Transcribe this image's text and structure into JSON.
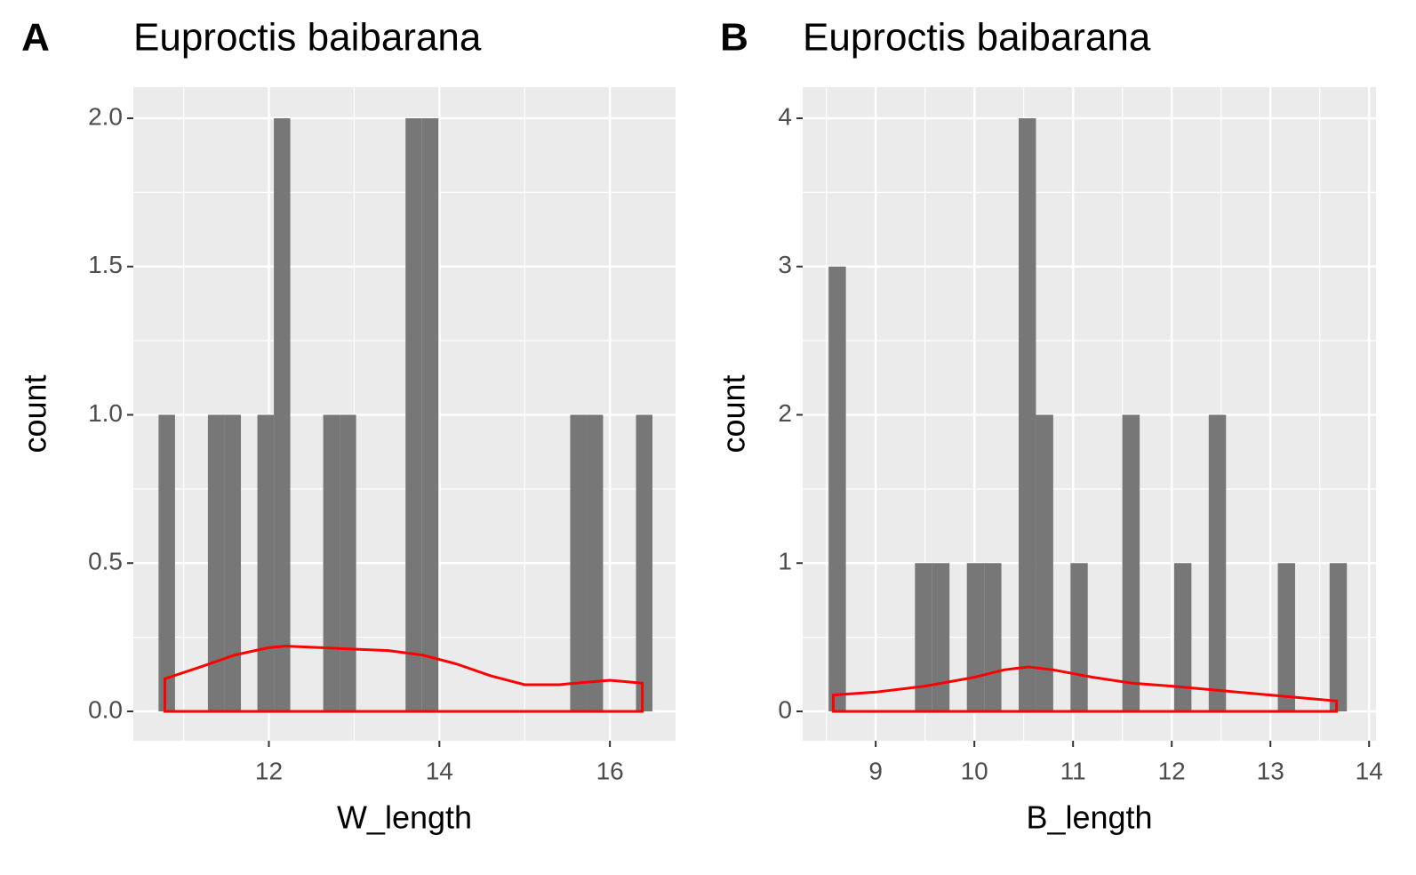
{
  "chart_data": [
    {
      "type": "histogram",
      "label": "A",
      "title": "Euproctis baibarana",
      "xlabel": "W_length",
      "ylabel": "count",
      "bins": [
        10.706,
        10.899,
        11.092,
        11.285,
        11.478,
        11.672,
        11.865,
        12.058,
        12.251,
        12.444,
        12.637,
        12.83,
        13.023,
        13.216,
        13.409,
        13.603,
        13.796,
        13.989,
        14.182,
        14.375,
        14.568,
        14.761,
        14.954,
        15.147,
        15.34,
        15.534,
        15.727,
        15.92,
        16.113,
        16.306,
        16.499
      ],
      "counts": [
        1,
        0,
        0,
        1,
        1,
        0,
        1,
        2,
        0,
        0,
        1,
        1,
        0,
        0,
        0,
        2,
        2,
        0,
        0,
        0,
        0,
        0,
        0,
        0,
        0,
        1,
        1,
        0,
        0,
        1
      ],
      "color": "#777777",
      "density": {
        "color": "#ff0000",
        "x": [
          10.78,
          11.2,
          11.6,
          12.0,
          12.2,
          12.6,
          13.0,
          13.4,
          13.8,
          14.2,
          14.6,
          15.0,
          15.4,
          15.8,
          16.0,
          16.38
        ],
        "y": [
          0.11,
          0.15,
          0.19,
          0.215,
          0.22,
          0.215,
          0.21,
          0.205,
          0.19,
          0.16,
          0.12,
          0.09,
          0.09,
          0.1,
          0.105,
          0.095
        ]
      },
      "xlim": [
        10.41,
        16.77
      ],
      "ylim": [
        -0.099,
        2.105
      ],
      "xticks": [
        12,
        14,
        16
      ],
      "yticks": [
        {
          "value": 0,
          "label": "0.0"
        },
        0.5,
        {
          "value": 1,
          "label": "1.0"
        },
        1.5,
        {
          "value": 2,
          "label": "2.0"
        }
      ],
      "minor_xticks": [
        11,
        13,
        15
      ],
      "minor_yticks": [
        0.25,
        0.75,
        1.25,
        1.75
      ],
      "grid": true
    },
    {
      "type": "histogram",
      "label": "B",
      "title": "Euproctis baibarana",
      "xlabel": "B_length",
      "ylabel": "count",
      "bins": [
        8.523,
        8.698,
        8.873,
        9.048,
        9.223,
        9.398,
        9.573,
        9.748,
        9.924,
        10.099,
        10.274,
        10.449,
        10.624,
        10.799,
        10.974,
        11.149,
        11.324,
        11.499,
        11.675,
        11.85,
        12.025,
        12.2,
        12.375,
        12.55,
        12.725,
        12.9,
        13.075,
        13.25,
        13.425,
        13.6,
        13.775
      ],
      "counts": [
        3,
        0,
        0,
        0,
        0,
        1,
        1,
        0,
        1,
        1,
        0,
        4,
        2,
        0,
        1,
        0,
        0,
        2,
        0,
        0,
        1,
        0,
        2,
        0,
        0,
        0,
        1,
        0,
        0,
        1
      ],
      "color": "#777777",
      "density": {
        "color": "#ff0000",
        "x": [
          8.57,
          9.0,
          9.5,
          10.0,
          10.3,
          10.55,
          10.8,
          11.2,
          11.6,
          12.0,
          12.5,
          13.0,
          13.67
        ],
        "y": [
          0.11,
          0.13,
          0.17,
          0.23,
          0.28,
          0.3,
          0.28,
          0.23,
          0.19,
          0.17,
          0.14,
          0.11,
          0.07
        ]
      },
      "xlim": [
        8.26,
        14.07
      ],
      "ylim": [
        -0.198,
        4.21
      ],
      "xticks": [
        9,
        10,
        11,
        12,
        13,
        14
      ],
      "yticks": [
        0,
        1,
        2,
        3,
        4
      ],
      "minor_xticks": [
        8.5,
        9.5,
        10.5,
        11.5,
        12.5,
        13.5
      ],
      "minor_yticks": [
        0.5,
        1.5,
        2.5,
        3.5
      ],
      "grid": true
    }
  ]
}
